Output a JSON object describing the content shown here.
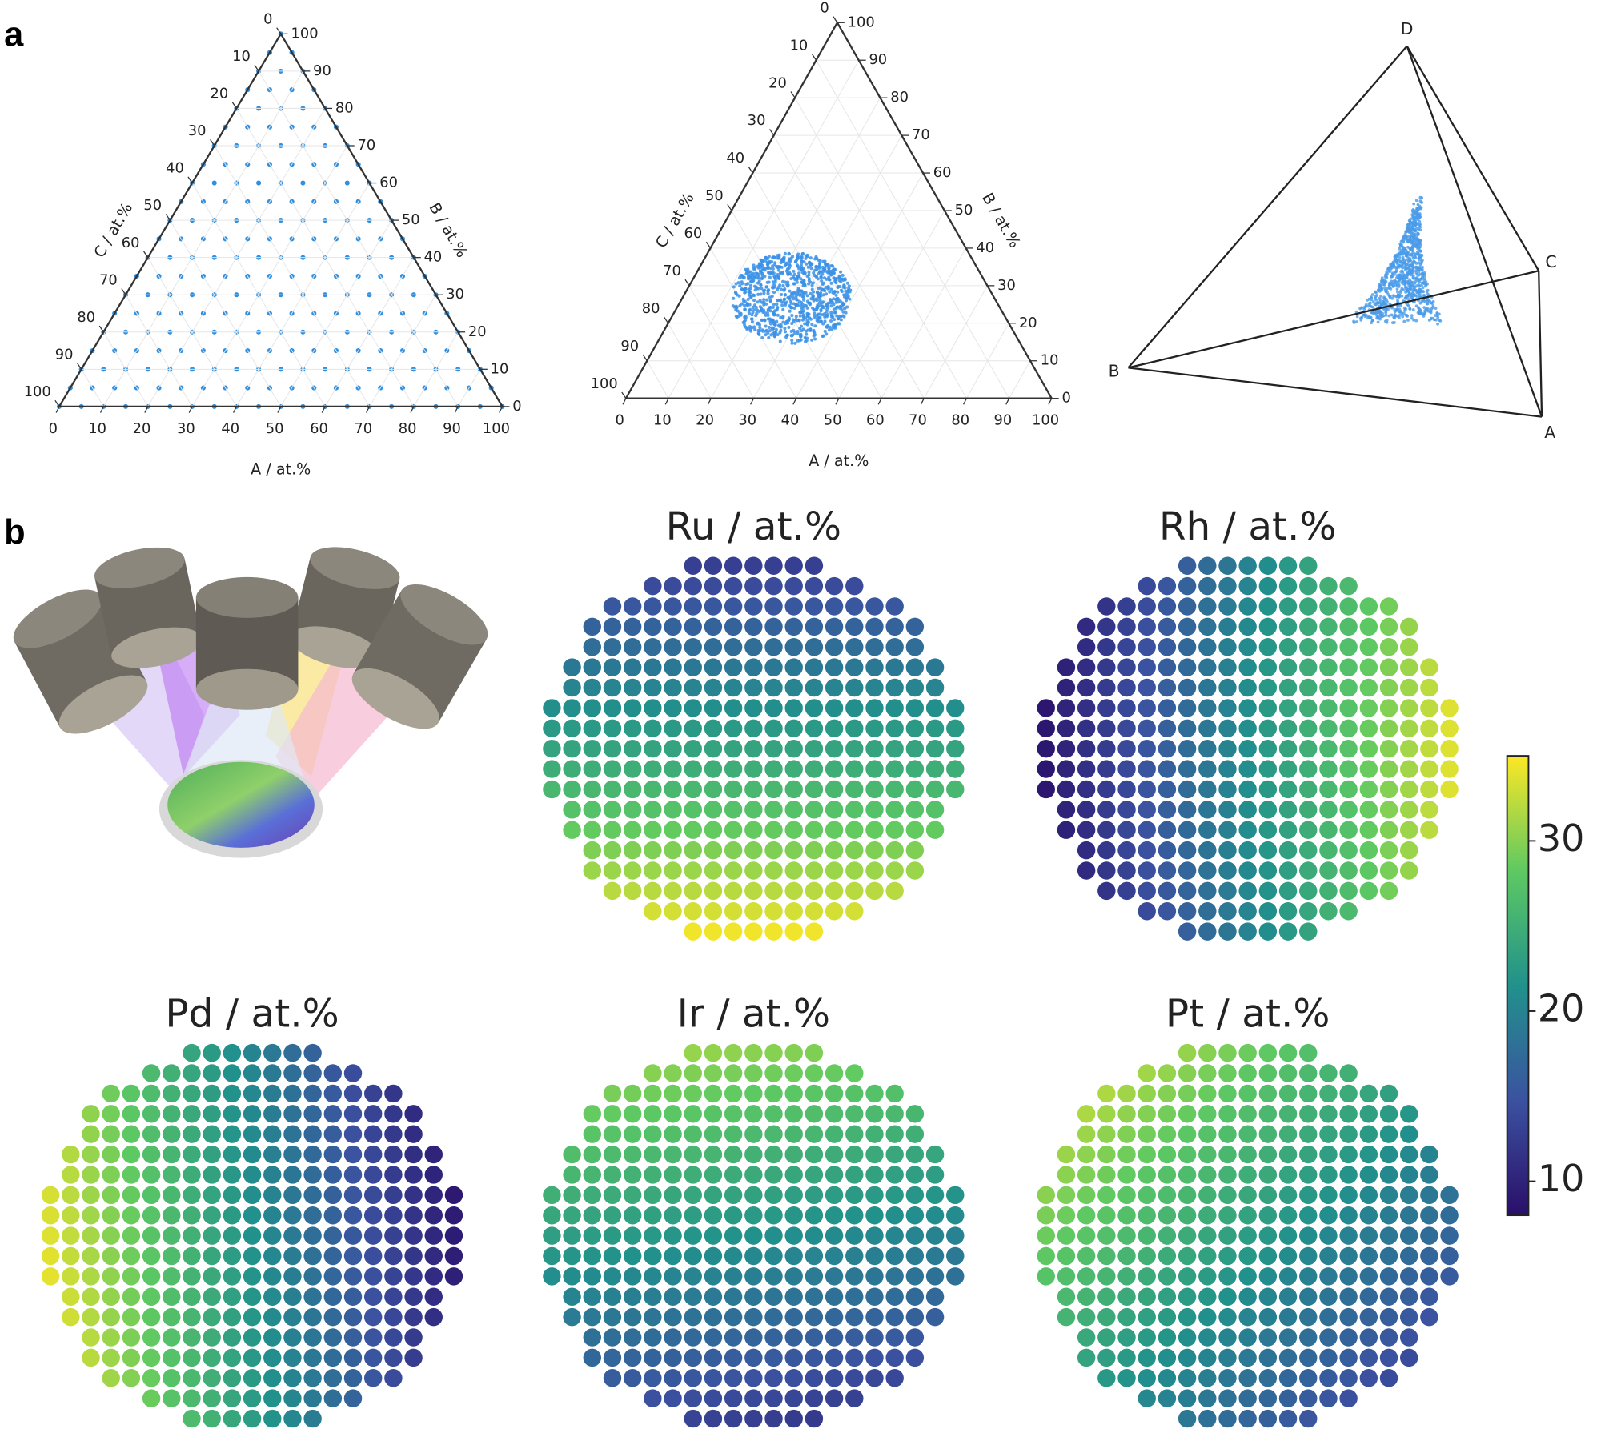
{
  "panel_labels": [
    "a",
    "b"
  ],
  "ternary_grid": {
    "axis_labels": {
      "a": "A / at.%",
      "b": "B / at.%",
      "c": "C / at.%"
    },
    "ticks": [
      0,
      10,
      20,
      30,
      40,
      50,
      60,
      70,
      80,
      90,
      100
    ]
  },
  "ternary_cloud": {
    "axis_labels": {
      "a": "A / at.%",
      "b": "B / at.%",
      "c": "C / at.%"
    },
    "ticks": [
      0,
      10,
      20,
      30,
      40,
      50,
      60,
      70,
      80,
      90,
      100
    ]
  },
  "tetrahedron": {
    "vertices": {
      "a": "A",
      "b": "B",
      "c": "C",
      "d": "D"
    }
  },
  "maps": [
    {
      "title": "Ru / at.%"
    },
    {
      "title": "Rh / at.%"
    },
    {
      "title": "Pd / at.%"
    },
    {
      "title": "Ir / at.%"
    },
    {
      "title": "Pt / at.%"
    }
  ],
  "colorbar": {
    "lim": [
      8,
      35
    ],
    "ticks": [
      10,
      20,
      30
    ]
  }
}
